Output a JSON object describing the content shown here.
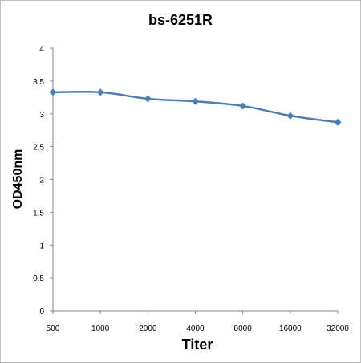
{
  "chart_data": {
    "type": "line",
    "title": "bs-6251R",
    "xlabel": "Titer",
    "ylabel": "OD450nm",
    "categories": [
      "500",
      "1000",
      "2000",
      "4000",
      "8000",
      "16000",
      "32000"
    ],
    "series": [
      {
        "values": [
          3.33,
          3.33,
          3.23,
          3.19,
          3.12,
          2.97,
          2.87
        ],
        "color": "#4a7ebb"
      }
    ],
    "yticks": [
      "0",
      "0.5",
      "1",
      "1.5",
      "2",
      "2.5",
      "3",
      "3.5",
      "4"
    ],
    "ylim": [
      0,
      4
    ],
    "grid": false,
    "legend": "none",
    "marker": "diamond"
  }
}
